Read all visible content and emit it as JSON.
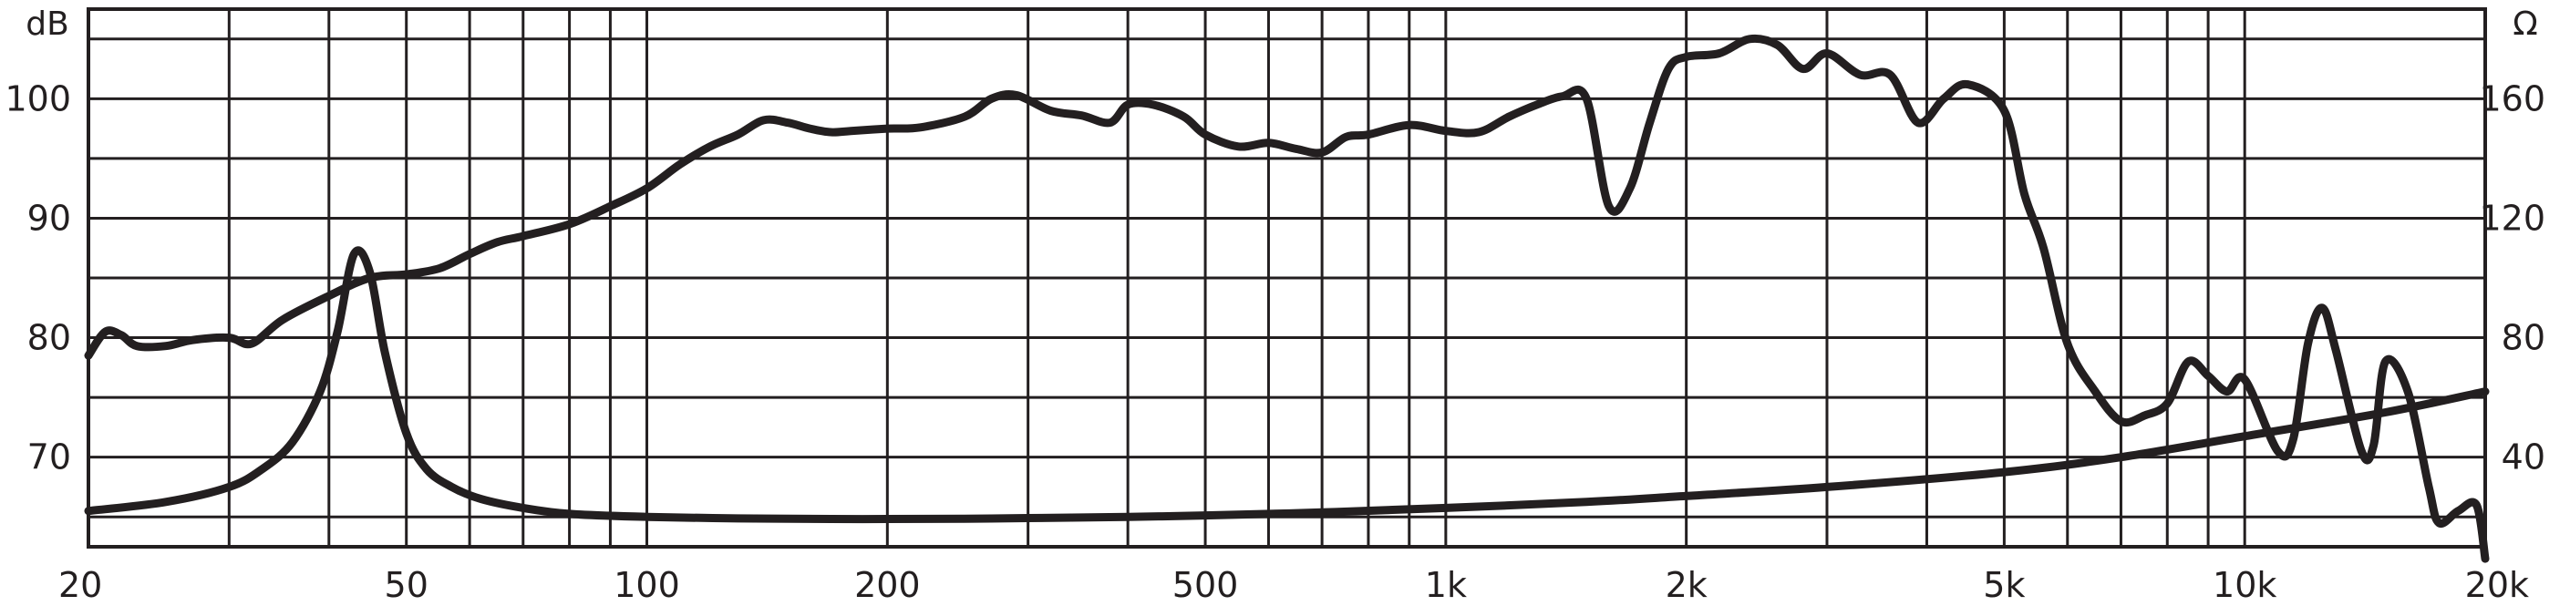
{
  "chart_data": {
    "type": "line",
    "x_scale": "log",
    "grid": true,
    "legend": "none",
    "x_ticks": [
      {
        "value": 20,
        "label": "20"
      },
      {
        "value": 50,
        "label": "50"
      },
      {
        "value": 100,
        "label": "100"
      },
      {
        "value": 200,
        "label": "200"
      },
      {
        "value": 500,
        "label": "500"
      },
      {
        "value": 1000,
        "label": "1k"
      },
      {
        "value": 2000,
        "label": "2k"
      },
      {
        "value": 5000,
        "label": "5k"
      },
      {
        "value": 10000,
        "label": "10k"
      },
      {
        "value": 20000,
        "label": "20k"
      }
    ],
    "y_left": {
      "unit": "dB",
      "range": [
        62.5,
        107.5
      ],
      "ticks": [
        {
          "value": 100,
          "label": "100"
        },
        {
          "value": 90,
          "label": "90"
        },
        {
          "value": 80,
          "label": "80"
        },
        {
          "value": 70,
          "label": "70"
        }
      ]
    },
    "y_right": {
      "unit": "Ω",
      "range": [
        10,
        190
      ],
      "ticks": [
        {
          "value": 160,
          "label": "160"
        },
        {
          "value": 120,
          "label": "120"
        },
        {
          "value": 80,
          "label": "80"
        },
        {
          "value": 40,
          "label": "40"
        }
      ]
    },
    "series": [
      {
        "axis": "left",
        "x": [
          20,
          21,
          22,
          23,
          25,
          27,
          30,
          32,
          35,
          40,
          45,
          50,
          55,
          60,
          65,
          70,
          80,
          90,
          100,
          110,
          120,
          130,
          140,
          150,
          160,
          170,
          180,
          200,
          220,
          250,
          270,
          290,
          320,
          350,
          380,
          400,
          430,
          470,
          500,
          550,
          600,
          650,
          700,
          750,
          800,
          900,
          1000,
          1100,
          1200,
          1300,
          1400,
          1500,
          1600,
          1700,
          1800,
          1900,
          2000,
          2200,
          2400,
          2600,
          2800,
          3000,
          3300,
          3600,
          3900,
          4200,
          4500,
          5000,
          5300,
          5600,
          6000,
          6500,
          7000,
          7500,
          8000,
          8500,
          9000,
          9500,
          10000,
          11000,
          11500,
          12000,
          12500,
          13000,
          14000,
          14500,
          15000,
          16000,
          17000,
          17500,
          18500,
          19500,
          20000
        ],
        "y": [
          78.5,
          80.5,
          80.2,
          79.3,
          79.3,
          79.8,
          80.0,
          79.5,
          81.5,
          83.5,
          85.0,
          85.3,
          85.8,
          87.0,
          88.0,
          88.5,
          89.5,
          91.0,
          92.5,
          94.5,
          96.0,
          97.0,
          98.2,
          98.0,
          97.5,
          97.2,
          97.3,
          97.5,
          97.6,
          98.5,
          100.0,
          100.3,
          99.0,
          98.6,
          98.0,
          99.5,
          99.5,
          98.5,
          97.0,
          96.0,
          96.3,
          95.8,
          95.5,
          96.8,
          97.0,
          97.8,
          97.3,
          97.2,
          98.5,
          99.5,
          100.2,
          100.0,
          91.0,
          92.5,
          98.0,
          102.5,
          103.5,
          103.8,
          105.0,
          104.5,
          102.5,
          103.8,
          102.0,
          102.0,
          98.0,
          100.0,
          101.2,
          99.0,
          92.0,
          87.5,
          79.5,
          75.5,
          73.0,
          73.5,
          74.5,
          78.0,
          76.8,
          75.5,
          76.5,
          70.5,
          71.5,
          79.5,
          82.5,
          79.0,
          70.5,
          71.0,
          78.0,
          75.5,
          67.5,
          64.5,
          65.5,
          66.0,
          61.5
        ]
      },
      {
        "axis": "right",
        "x": [
          20,
          25,
          30,
          33,
          36,
          39,
          41,
          43,
          45,
          47,
          50,
          53,
          57,
          62,
          70,
          80,
          100,
          130,
          170,
          200,
          250,
          300,
          400,
          500,
          700,
          1000,
          1500,
          2000,
          3000,
          5000,
          7000,
          10000,
          15000,
          20000
        ],
        "y": [
          22,
          25,
          30,
          36,
          45,
          62,
          82,
          108,
          102,
          75,
          48,
          36,
          30,
          26,
          23,
          21,
          20,
          19.5,
          19.3,
          19.3,
          19.4,
          19.6,
          20,
          20.5,
          21.5,
          23,
          25,
          27,
          30,
          35,
          40,
          47,
          55,
          62
        ]
      }
    ]
  }
}
